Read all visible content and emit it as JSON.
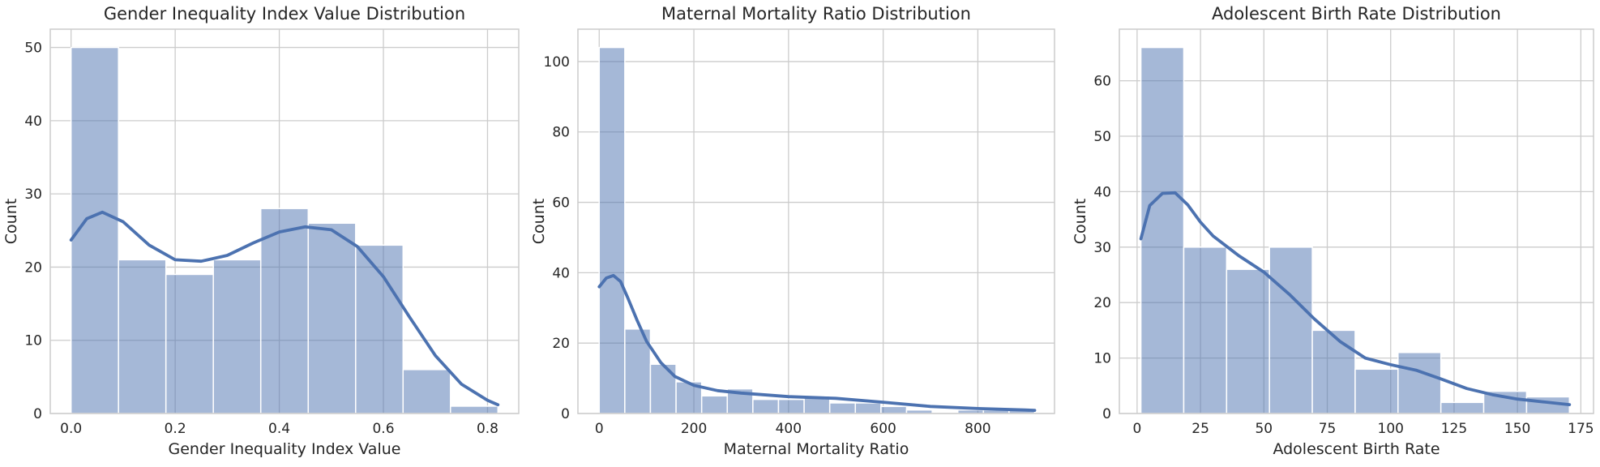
{
  "chart_data": [
    {
      "type": "bar",
      "title": "Gender Inequality Index Value Distribution",
      "xlabel": "Gender Inequality Index Value",
      "ylabel": "Count",
      "xlim": [
        -0.04,
        0.86
      ],
      "ylim": [
        0,
        52.5
      ],
      "xticks": [
        0.0,
        0.2,
        0.4,
        0.6,
        0.8
      ],
      "xtick_labels": [
        "0.0",
        "0.2",
        "0.4",
        "0.6",
        "0.8"
      ],
      "yticks": [
        0,
        10,
        20,
        30,
        40,
        50
      ],
      "ytick_labels": [
        "0",
        "10",
        "20",
        "30",
        "40",
        "50"
      ],
      "bin_edges": [
        0.0,
        0.0911,
        0.1822,
        0.2733,
        0.3644,
        0.4556,
        0.5467,
        0.6378,
        0.7289,
        0.82
      ],
      "counts": [
        50,
        21,
        19,
        21,
        28,
        26,
        23,
        6,
        1
      ],
      "kde": {
        "x": [
          0.0,
          0.03,
          0.06,
          0.1,
          0.15,
          0.2,
          0.25,
          0.3,
          0.35,
          0.4,
          0.45,
          0.5,
          0.55,
          0.6,
          0.65,
          0.7,
          0.75,
          0.8,
          0.82
        ],
        "y": [
          23.7,
          26.6,
          27.5,
          26.2,
          23.0,
          21.0,
          20.8,
          21.6,
          23.3,
          24.8,
          25.5,
          25.1,
          22.8,
          18.7,
          13.2,
          7.9,
          4.0,
          1.8,
          1.2
        ]
      },
      "grid": true,
      "colors": {
        "bar": "#4c72b0",
        "kde": "#4c72b0"
      }
    },
    {
      "type": "bar",
      "title": "Maternal Mortality Ratio Distribution",
      "xlabel": "Maternal Mortality Ratio",
      "ylabel": "Count",
      "xlim": [
        -45,
        962
      ],
      "ylim": [
        0,
        109.2
      ],
      "xticks": [
        0,
        200,
        400,
        600,
        800
      ],
      "xtick_labels": [
        "0",
        "200",
        "400",
        "600",
        "800"
      ],
      "yticks": [
        0,
        20,
        40,
        60,
        80,
        100
      ],
      "ytick_labels": [
        "0",
        "20",
        "40",
        "60",
        "80",
        "100"
      ],
      "bin_edges": [
        0,
        54.1,
        108.2,
        162.4,
        216.5,
        270.6,
        324.7,
        378.8,
        433.0,
        487.1,
        541.2,
        595.3,
        649.4,
        703.6,
        757.7,
        811.8,
        865.9,
        920
      ],
      "counts": [
        104,
        24,
        14,
        9,
        5,
        7,
        4,
        4,
        5,
        3,
        3,
        2,
        1,
        0,
        1,
        1,
        1
      ],
      "kde": {
        "x": [
          0,
          15,
          30,
          45,
          60,
          80,
          100,
          130,
          160,
          200,
          250,
          300,
          400,
          500,
          600,
          700,
          800,
          900,
          920
        ],
        "y": [
          36,
          38.5,
          39.2,
          37.5,
          33,
          26.5,
          20.5,
          14.5,
          10.5,
          8,
          6.5,
          5.8,
          4.8,
          4.3,
          3.2,
          2.0,
          1.4,
          1.0,
          0.9
        ]
      },
      "grid": true,
      "colors": {
        "bar": "#4c72b0",
        "kde": "#4c72b0"
      }
    },
    {
      "type": "bar",
      "title": "Adolescent Birth Rate Distribution",
      "xlabel": "Adolescent Birth Rate",
      "ylabel": "Count",
      "xlim": [
        -7,
        180
      ],
      "ylim": [
        0,
        69.3
      ],
      "xticks": [
        0,
        25,
        50,
        75,
        100,
        125,
        150,
        175
      ],
      "xtick_labels": [
        "0",
        "25",
        "50",
        "75",
        "100",
        "125",
        "150",
        "175"
      ],
      "yticks": [
        0,
        10,
        20,
        30,
        40,
        50,
        60
      ],
      "ytick_labels": [
        "0",
        "10",
        "20",
        "30",
        "40",
        "50",
        "60"
      ],
      "bin_edges": [
        1.5,
        18.4,
        35.3,
        52.2,
        69.1,
        86.0,
        102.9,
        119.8,
        136.7,
        153.6,
        170.5
      ],
      "counts": [
        66,
        30,
        26,
        30,
        15,
        8,
        11,
        2,
        4,
        3
      ],
      "kde": {
        "x": [
          1.5,
          5,
          10,
          15,
          20,
          25,
          30,
          40,
          50,
          60,
          70,
          80,
          90,
          100,
          110,
          120,
          130,
          140,
          150,
          160,
          170.5
        ],
        "y": [
          31.5,
          37.5,
          39.7,
          39.8,
          37.6,
          34.5,
          32,
          28.5,
          25.5,
          21.5,
          17,
          13,
          10,
          8.8,
          7.8,
          6.2,
          4.5,
          3.4,
          2.6,
          2.1,
          1.6
        ]
      },
      "grid": true,
      "colors": {
        "bar": "#4c72b0",
        "kde": "#4c72b0"
      }
    }
  ]
}
